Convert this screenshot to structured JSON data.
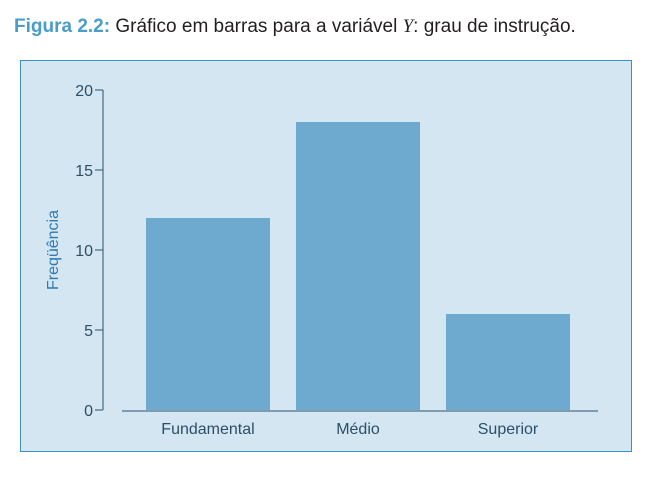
{
  "caption": {
    "label": "Figura 2.2:",
    "text_before": "Gráfico em barras para a variável ",
    "variable": "Y",
    "text_after": ": grau de instrução."
  },
  "colors": {
    "bar": "#6ea9cf",
    "panel_background": "#d4e6f1",
    "panel_border": "#3f8fc0",
    "axis": "#2b4f6a",
    "caption_label": "#4a9cc9"
  },
  "chart_data": {
    "type": "bar",
    "categories": [
      "Fundamental",
      "Médio",
      "Superior"
    ],
    "values": [
      12,
      18,
      6
    ],
    "title": "",
    "xlabel": "",
    "ylabel": "Freqüência",
    "ylim": [
      0,
      20
    ],
    "yticks": [
      0,
      5,
      10,
      15,
      20
    ],
    "grid": false,
    "legend": "none"
  }
}
